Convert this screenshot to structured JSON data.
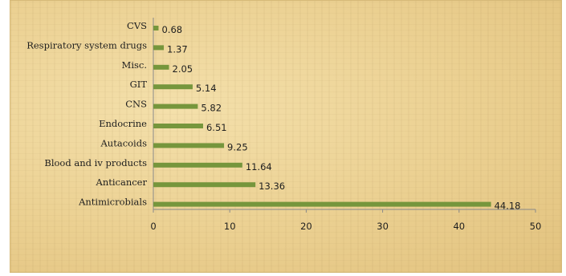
{
  "chart_data": {
    "type": "bar",
    "orientation": "horizontal",
    "categories": [
      "CVS",
      "Respiratory system drugs",
      "Misc.",
      "GIT",
      "CNS",
      "Endocrine",
      "Autacoids",
      "Blood and iv products",
      "Anticancer",
      "Antimicrobials"
    ],
    "values": [
      0.68,
      1.37,
      2.05,
      5.14,
      5.82,
      6.51,
      9.25,
      11.64,
      13.36,
      44.18
    ],
    "value_labels": [
      "0.68",
      "1.37",
      "2.05",
      "5.14",
      "5.82",
      "6.51",
      "9.25",
      "11.64",
      "13.36",
      "44.18"
    ],
    "xlim": [
      0,
      50
    ],
    "xticks": [
      "0",
      "10",
      "20",
      "30",
      "40",
      "50"
    ],
    "title": "",
    "xlabel": "",
    "ylabel": "",
    "grid": false,
    "legend": "none",
    "bar_color": "#76963c",
    "background_color": "#ecd394"
  }
}
